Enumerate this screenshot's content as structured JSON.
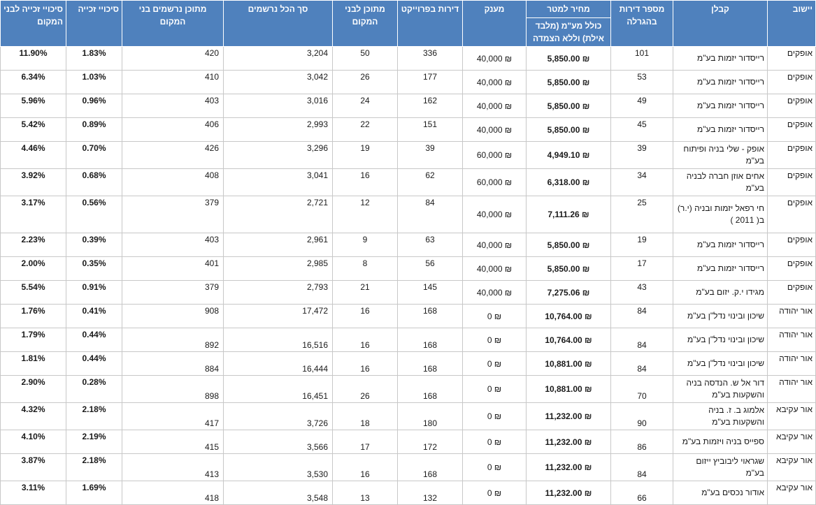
{
  "headers": {
    "chance_local": "סיכויי זכייה לבני המקום",
    "chance": "סיכויי זכייה",
    "local_registered_quota": "מתוכן נרשמים בני המקום",
    "total_registered": "סך הכל נרשמים",
    "local_quota": "מתוכן לבני המקום",
    "project_apartments": "דירות בפרוייקט",
    "grant": "מענק",
    "price_per_meter": "מחיר למטר",
    "price_note": "כולל מע\"מ (מלבד אילת) וללא הצמדה",
    "lottery_apartments": "מספר דירות בהגרלה",
    "contractor": "קבלן",
    "settlement": "יישוב"
  },
  "rows": [
    {
      "chance_local": "11.90%",
      "chance": "1.83%",
      "local_registered": "420",
      "total_registered": "3,204",
      "local_quota": "50",
      "project_apartments": "336",
      "grant": "40,000 ₪",
      "price": "5,850.00 ₪",
      "lottery_apartments": "101",
      "contractor": "רייסדור יזמות בע\"מ",
      "settlement": "אופקים"
    },
    {
      "chance_local": "6.34%",
      "chance": "1.03%",
      "local_registered": "410",
      "total_registered": "3,042",
      "local_quota": "26",
      "project_apartments": "177",
      "grant": "40,000 ₪",
      "price": "5,850.00 ₪",
      "lottery_apartments": "53",
      "contractor": "רייסדור יזמות בע\"מ",
      "settlement": "אופקים"
    },
    {
      "chance_local": "5.96%",
      "chance": "0.96%",
      "local_registered": "403",
      "total_registered": "3,016",
      "local_quota": "24",
      "project_apartments": "162",
      "grant": "40,000 ₪",
      "price": "5,850.00 ₪",
      "lottery_apartments": "49",
      "contractor": "רייסדור יזמות בע\"מ",
      "settlement": "אופקים"
    },
    {
      "chance_local": "5.42%",
      "chance": "0.89%",
      "local_registered": "406",
      "total_registered": "2,993",
      "local_quota": "22",
      "project_apartments": "151",
      "grant": "40,000 ₪",
      "price": "5,850.00 ₪",
      "lottery_apartments": "45",
      "contractor": "רייסדור יזמות בע\"מ",
      "settlement": "אופקים"
    },
    {
      "chance_local": "4.46%",
      "chance": "0.70%",
      "local_registered": "426",
      "total_registered": "3,296",
      "local_quota": "19",
      "project_apartments": "39",
      "grant": "60,000 ₪",
      "price": "4,949.10 ₪",
      "lottery_apartments": "39",
      "contractor": "אופק - שלי בניה ופיתוח בע\"מ",
      "settlement": "אופקים"
    },
    {
      "chance_local": "3.92%",
      "chance": "0.68%",
      "local_registered": "408",
      "total_registered": "3,041",
      "local_quota": "16",
      "project_apartments": "62",
      "grant": "60,000 ₪",
      "price": "6,318.00 ₪",
      "lottery_apartments": "34",
      "contractor": "אחים אוזן חברה לבניה בע\"מ",
      "settlement": "אופקים"
    },
    {
      "chance_local": "3.17%",
      "chance": "0.56%",
      "local_registered": "379",
      "total_registered": "2,721",
      "local_quota": "12",
      "project_apartments": "84",
      "grant": "40,000 ₪",
      "price": "7,111.26 ₪",
      "lottery_apartments": "25",
      "contractor": "חי רפאל יזמות ובניה (י.ר) ב( 2011 )",
      "settlement": "אופקים"
    },
    {
      "chance_local": "2.23%",
      "chance": "0.39%",
      "local_registered": "403",
      "total_registered": "2,961",
      "local_quota": "9",
      "project_apartments": "63",
      "grant": "40,000 ₪",
      "price": "5,850.00 ₪",
      "lottery_apartments": "19",
      "contractor": "רייסדור יזמות בע\"מ",
      "settlement": "אופקים"
    },
    {
      "chance_local": "2.00%",
      "chance": "0.35%",
      "local_registered": "401",
      "total_registered": "2,985",
      "local_quota": "8",
      "project_apartments": "56",
      "grant": "40,000 ₪",
      "price": "5,850.00 ₪",
      "lottery_apartments": "17",
      "contractor": "רייסדור יזמות בע\"מ",
      "settlement": "אופקים"
    },
    {
      "chance_local": "5.54%",
      "chance": "0.91%",
      "local_registered": "379",
      "total_registered": "2,793",
      "local_quota": "21",
      "project_apartments": "145",
      "grant": "40,000 ₪",
      "price": "7,275.06 ₪",
      "lottery_apartments": "43",
      "contractor": "מגידו י.ק. יזום בע\"מ",
      "settlement": "אופקים"
    },
    {
      "chance_local": "1.76%",
      "chance": "0.41%",
      "local_registered": "908",
      "total_registered": "17,472",
      "local_quota": "16",
      "project_apartments": "168",
      "grant": "0 ₪",
      "price": "10,764.00 ₪",
      "lottery_apartments": "84",
      "contractor": "שיכון ובינוי נדל\"ן בע\"מ",
      "settlement": "אור יהודה"
    },
    {
      "chance_local": "1.79%",
      "chance": "0.44%",
      "local_registered": "892",
      "total_registered": "16,516",
      "local_quota": "16",
      "project_apartments": "168",
      "grant": "0 ₪",
      "price": "10,764.00 ₪",
      "lottery_apartments": "84",
      "contractor": "שיכון ובינוי נדל\"ן בע\"מ",
      "settlement": "אור יהודה"
    },
    {
      "chance_local": "1.81%",
      "chance": "0.44%",
      "local_registered": "884",
      "total_registered": "16,444",
      "local_quota": "16",
      "project_apartments": "168",
      "grant": "0 ₪",
      "price": "10,881.00 ₪",
      "lottery_apartments": "84",
      "contractor": "שיכון ובינוי נדל\"ן בע\"מ",
      "settlement": "אור יהודה"
    },
    {
      "chance_local": "2.90%",
      "chance": "0.28%",
      "local_registered": "898",
      "total_registered": "16,451",
      "local_quota": "26",
      "project_apartments": "168",
      "grant": "0 ₪",
      "price": "10,881.00 ₪",
      "lottery_apartments": "70",
      "contractor": "דור אל ש. הנדסה בניה והשקעות בע\"מ",
      "settlement": "אור יהודה"
    },
    {
      "chance_local": "4.32%",
      "chance": "2.18%",
      "local_registered": "417",
      "total_registered": "3,726",
      "local_quota": "18",
      "project_apartments": "180",
      "grant": "0 ₪",
      "price": "11,232.00 ₪",
      "lottery_apartments": "90",
      "contractor": "אלמוג ב. ז. בניה והשקעות בע\"מ",
      "settlement": "אור עקיבא"
    },
    {
      "chance_local": "4.10%",
      "chance": "2.19%",
      "local_registered": "415",
      "total_registered": "3,566",
      "local_quota": "17",
      "project_apartments": "172",
      "grant": "0 ₪",
      "price": "11,232.00 ₪",
      "lottery_apartments": "86",
      "contractor": "ספייס בניה ויזמות בע\"מ",
      "settlement": "אור עקיבא"
    },
    {
      "chance_local": "3.87%",
      "chance": "2.18%",
      "local_registered": "413",
      "total_registered": "3,530",
      "local_quota": "16",
      "project_apartments": "168",
      "grant": "0 ₪",
      "price": "11,232.00 ₪",
      "lottery_apartments": "84",
      "contractor": "שגראוי ליבוביץ ייזום בע\"מ",
      "settlement": "אור עקיבא"
    },
    {
      "chance_local": "3.11%",
      "chance": "1.69%",
      "local_registered": "418",
      "total_registered": "3,548",
      "local_quota": "13",
      "project_apartments": "132",
      "grant": "0 ₪",
      "price": "11,232.00 ₪",
      "lottery_apartments": "66",
      "contractor": "אודור נכסים בע\"מ",
      "settlement": "אור עקיבא"
    }
  ]
}
